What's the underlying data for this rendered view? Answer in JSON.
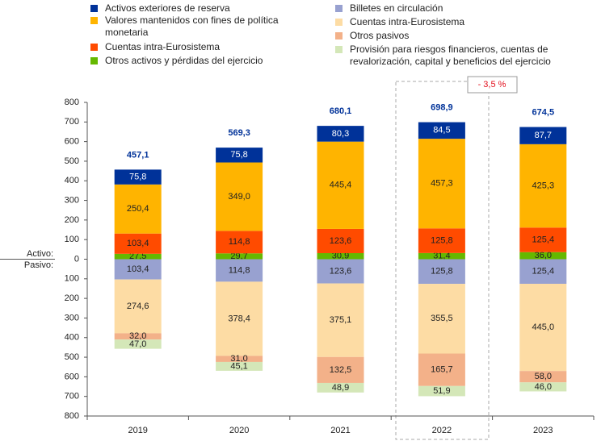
{
  "chart_data": {
    "type": "diverging-stacked-bar",
    "categories": [
      "2019",
      "2020",
      "2021",
      "2022",
      "2023"
    ],
    "series": [
      {
        "name": "Activos exteriores de reserva",
        "color": "#003299",
        "values": [
          75.8,
          75.8,
          80.3,
          84.5,
          87.7
        ],
        "value_labels": [
          "75,8",
          "75,8",
          "80,3",
          "84,5",
          "87,7"
        ]
      },
      {
        "name": "Valores mantenidos con fines de política monetaria",
        "color": "#ffb400",
        "values": [
          250.4,
          349.0,
          445.4,
          457.3,
          425.3
        ],
        "value_labels": [
          "250,4",
          "349,0",
          "445,4",
          "457,3",
          "425,3"
        ]
      },
      {
        "name": "Cuentas intra-Eurosistema",
        "color": "#ff4b00",
        "values": [
          103.4,
          114.8,
          123.6,
          125.8,
          125.4
        ],
        "value_labels": [
          "103,4",
          "114,8",
          "123,6",
          "125,8",
          "125,4"
        ]
      },
      {
        "name": "Otros activos y pérdidas del ejercicio",
        "color": "#65b800",
        "values": [
          27.5,
          29.7,
          30.9,
          31.4,
          36.0
        ],
        "value_labels": [
          "27,5",
          "29,7",
          "30,9",
          "31,4",
          "36,0"
        ]
      },
      {
        "name": "Billetes en circulación",
        "color": "#98a1d0",
        "values": [
          -103.4,
          -114.8,
          -123.6,
          -125.8,
          -125.4
        ],
        "value_labels": [
          "103,4",
          "114,8",
          "123,6",
          "125,8",
          "125,4"
        ]
      },
      {
        "name": "Cuentas intra-Eurosistema",
        "color": "#fddca4",
        "values": [
          -274.6,
          -378.4,
          -375.1,
          -355.5,
          -445.0
        ],
        "value_labels": [
          "274,6",
          "378,4",
          "375,1",
          "355,5",
          "445,0"
        ]
      },
      {
        "name": "Otros pasivos",
        "color": "#f3b189",
        "values": [
          -32.0,
          -31.0,
          -132.5,
          -165.7,
          -58.0
        ],
        "value_labels": [
          "32,0",
          "31,0",
          "132,5",
          "165,7",
          "58,0"
        ]
      },
      {
        "name": "Provisión para riesgos financieros, cuentas de revalorización, capital y beneficios del ejercicio",
        "color": "#d4e7b8",
        "values": [
          -47.0,
          -45.1,
          -48.9,
          -51.9,
          -46.0
        ],
        "value_labels": [
          "47,0",
          "45,1",
          "48,9",
          "51,9",
          "46,0"
        ]
      }
    ],
    "totals": {
      "color": "#003299",
      "values": [
        457.1,
        569.3,
        680.1,
        698.9,
        674.5
      ],
      "value_labels": [
        "457,1",
        "569,3",
        "680,1",
        "698,9",
        "674,5"
      ]
    },
    "ylabel_top": "Activo:",
    "ylabel_bottom": "Pasivo:",
    "annotation": "- 3,5 %",
    "ylim": [
      -800,
      800
    ],
    "yticks": [
      {
        "value": -800,
        "label": "800"
      },
      {
        "value": -700,
        "label": "700"
      },
      {
        "value": -600,
        "label": "600"
      },
      {
        "value": -500,
        "label": "500"
      },
      {
        "value": -400,
        "label": "400"
      },
      {
        "value": -300,
        "label": "300"
      },
      {
        "value": -200,
        "label": "200"
      },
      {
        "value": -100,
        "label": "100"
      },
      0,
      100,
      200,
      300,
      400,
      500,
      600,
      700,
      800
    ]
  }
}
